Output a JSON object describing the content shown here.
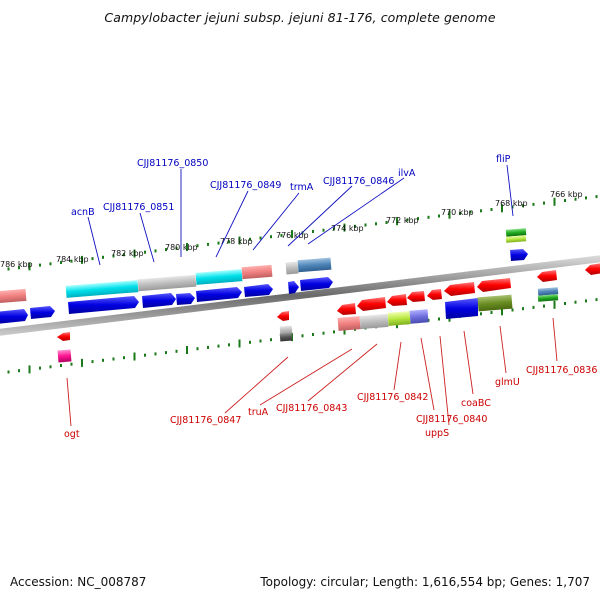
{
  "title": "Campylobacter jejuni subsp. jejuni 81-176, complete genome",
  "scale_labels": [
    "786 kbp",
    "784 kbp",
    "782 kbp",
    "780 kbp",
    "778 kbp",
    "776 kbp",
    "774 kbp",
    "772 kbp",
    "770 kbp",
    "768 kbp",
    "766 kbp"
  ],
  "genes_top": [
    "acnB",
    "CJJ81176_0851",
    "CJJ81176_0850",
    "CJJ81176_0849",
    "trmA",
    "CJJ81176_0846",
    "ilvA",
    "fliP"
  ],
  "genes_bottom": [
    "ogt",
    "CJJ81176_0847",
    "truA",
    "CJJ81176_0843",
    "CJJ81176_0842",
    "CJJ81176_0840",
    "uppS",
    "coaBC",
    "glmU",
    "CJJ81176_0836"
  ],
  "colors": {
    "forward": "#1010e0",
    "reverse": "#ff0000",
    "top_label": "#0000c0",
    "bottom_label": "#cc0000",
    "tick": "#1a7a1a"
  },
  "footer": {
    "accession": "Accession: NC_008787",
    "summary": "Topology: circular; Length: 1,616,554 bp; Genes: 1,707"
  }
}
